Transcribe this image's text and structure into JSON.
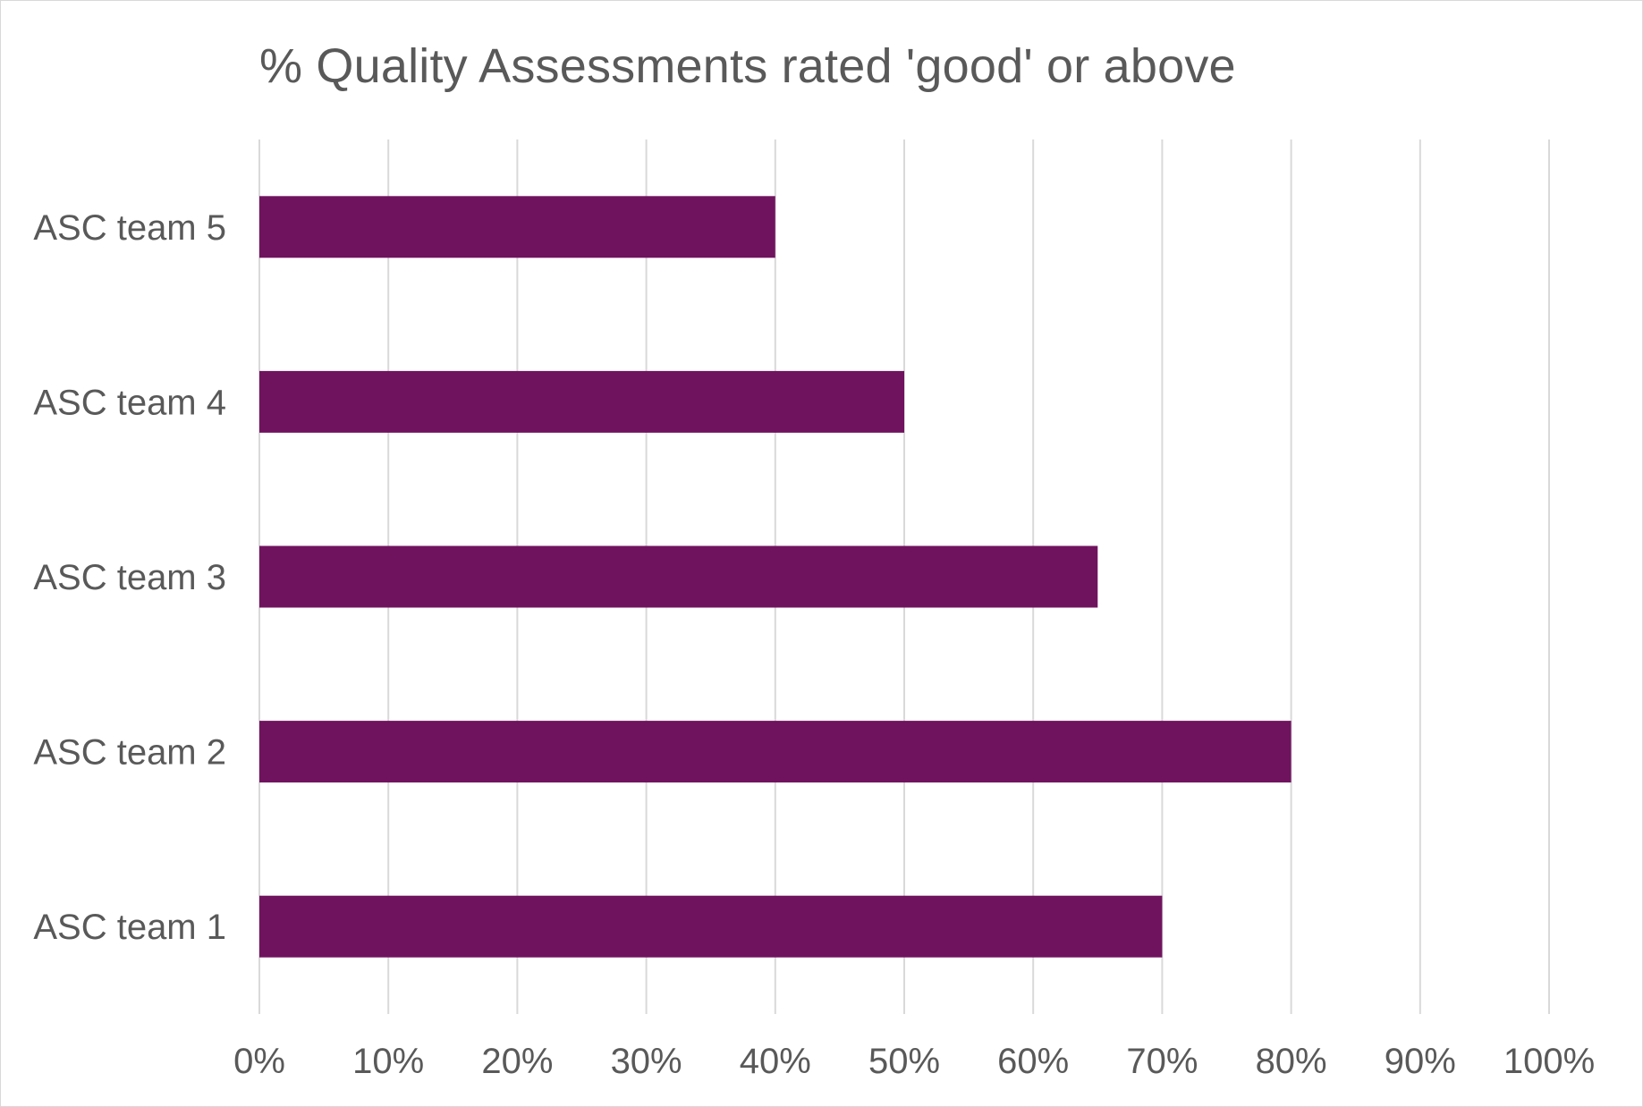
{
  "chart_data": {
    "type": "bar",
    "orientation": "horizontal",
    "title": "% Quality Assessments rated 'good' or above",
    "xlabel": "",
    "ylabel": "",
    "categories": [
      "ASC team 1",
      "ASC team 2",
      "ASC team 3",
      "ASC team 4",
      "ASC team 5"
    ],
    "values": [
      0.7,
      0.8,
      0.65,
      0.5,
      0.4
    ],
    "xlim": [
      0,
      1
    ],
    "xticks": [
      0,
      0.1,
      0.2,
      0.3,
      0.4,
      0.5,
      0.6,
      0.7,
      0.8,
      0.9,
      1.0
    ],
    "xtick_labels": [
      "0%",
      "10%",
      "20%",
      "30%",
      "40%",
      "50%",
      "60%",
      "70%",
      "80%",
      "90%",
      "100%"
    ],
    "grid": true,
    "legend": "none",
    "bar_color": "#70135E",
    "grid_color": "#d9d9d9",
    "text_color": "#595959"
  }
}
